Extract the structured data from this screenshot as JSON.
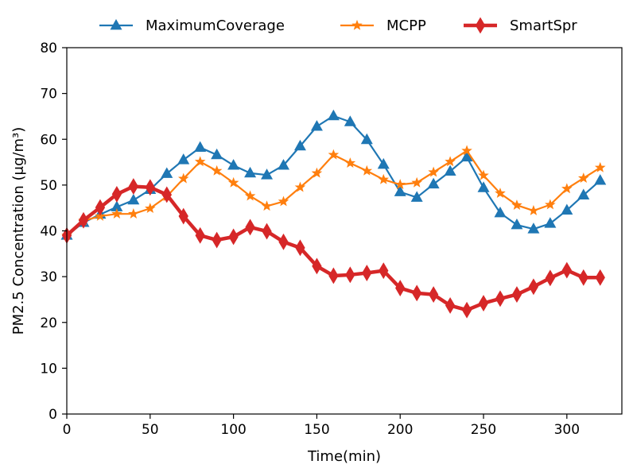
{
  "chart_data": {
    "type": "line",
    "title": "",
    "xlabel": "Time(min)",
    "ylabel": "PM2.5 Concentration (μg/m³)",
    "xlim": [
      0,
      333
    ],
    "ylim": [
      0,
      80
    ],
    "xticks": [
      0,
      50,
      100,
      150,
      200,
      250,
      300
    ],
    "yticks": [
      0,
      10,
      20,
      30,
      40,
      50,
      60,
      70,
      80
    ],
    "grid": false,
    "legend_position": "top-center",
    "x": [
      0,
      10,
      20,
      30,
      40,
      50,
      60,
      70,
      80,
      90,
      100,
      110,
      120,
      130,
      140,
      150,
      160,
      170,
      180,
      190,
      200,
      210,
      220,
      230,
      240,
      250,
      260,
      270,
      280,
      290,
      300,
      310,
      320
    ],
    "series": [
      {
        "name": "MaximumCoverage",
        "color": "#1f77b4",
        "marker": "triangle",
        "values": [
          39.0,
          41.8,
          43.6,
          45.2,
          46.7,
          49.0,
          52.5,
          55.5,
          58.2,
          56.6,
          54.3,
          52.6,
          52.2,
          54.3,
          58.5,
          62.8,
          65.1,
          63.8,
          59.9,
          54.5,
          48.5,
          47.3,
          50.2,
          53.0,
          56.1,
          49.4,
          43.9,
          41.3,
          40.4,
          41.6,
          44.5,
          47.8,
          51.0
        ]
      },
      {
        "name": "MCPP",
        "color": "#ff7f0e",
        "marker": "star",
        "values": [
          39.0,
          42.2,
          43.2,
          43.7,
          43.7,
          44.9,
          47.5,
          51.4,
          55.1,
          53.1,
          50.5,
          47.6,
          45.4,
          46.4,
          49.5,
          52.6,
          56.6,
          54.8,
          53.1,
          51.2,
          50.1,
          50.5,
          52.8,
          55.1,
          57.5,
          52.1,
          48.2,
          45.6,
          44.4,
          45.7,
          49.2,
          51.5,
          53.8
        ]
      },
      {
        "name": "SmartSpr",
        "color": "#d62728",
        "marker": "diamond",
        "values": [
          39.0,
          42.3,
          45.1,
          48.0,
          49.7,
          49.5,
          47.9,
          43.2,
          39.0,
          38.0,
          38.7,
          40.8,
          39.9,
          37.6,
          36.3,
          32.3,
          30.2,
          30.4,
          30.8,
          31.3,
          27.5,
          26.4,
          26.1,
          23.7,
          22.7,
          24.2,
          25.2,
          26.1,
          27.8,
          29.7,
          31.4,
          29.8,
          29.8
        ]
      }
    ]
  }
}
